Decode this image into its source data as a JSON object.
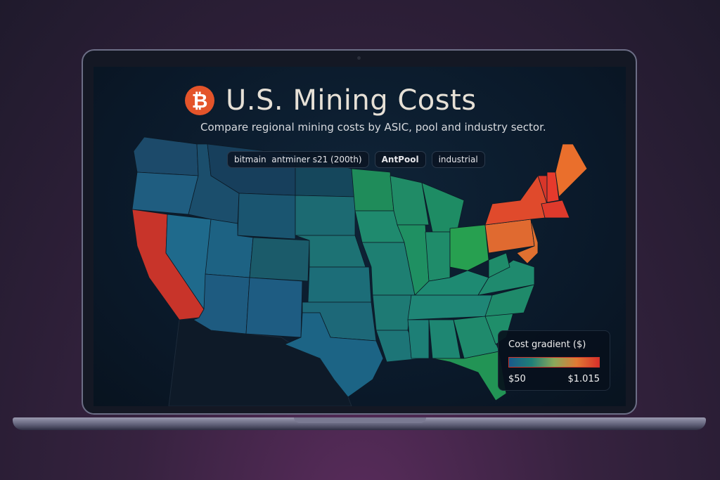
{
  "header": {
    "logo_icon": "bitcoin-icon",
    "logo_glyph": "₿",
    "title": "U.S. Mining Costs",
    "subtitle": "Compare regional mining costs by ASIC, pool and industry sector."
  },
  "filters": [
    {
      "label": "bitmain  antminer s21 (200th)"
    },
    {
      "label": "AntPool"
    },
    {
      "label": "industrial"
    }
  ],
  "legend": {
    "title": "Cost gradient ($)",
    "min_label": "$50",
    "max_label": "$1.015",
    "colors": [
      "#1a5a8a",
      "#1f7f78",
      "#8aa85a",
      "#e07a34",
      "#d8302a"
    ]
  },
  "map": {
    "states": {
      "WA": "#1c4a6a",
      "OR": "#1f5d80",
      "CA": "#c8342a",
      "NV": "#1f6a8c",
      "ID": "#1b4e6c",
      "MT": "#173f5c",
      "WY": "#1a5570",
      "UT": "#1d6283",
      "CO": "#1b5b6a",
      "AZ": "#1e5b80",
      "NM": "#1e5c82",
      "ND": "#15475c",
      "SD": "#1c6a72",
      "NE": "#1d7274",
      "KS": "#1c6d78",
      "OK": "#1d6878",
      "TX": "#1c6485",
      "MN": "#1f8c5a",
      "IA": "#1f8a6e",
      "MO": "#1e7f72",
      "AR": "#1e7a74",
      "LA": "#1d7577",
      "WI": "#208b66",
      "IL": "#1f9062",
      "MI": "#1e8c64",
      "IN": "#1f8c6a",
      "OH": "#27a050",
      "KY": "#1e8a72",
      "TN": "#1f8676",
      "MS": "#1d7f76",
      "AL": "#1e8672",
      "GA": "#1f8a6c",
      "FL": "#229455",
      "SC": "#1f8e6a",
      "NC": "#1f8a6a",
      "VA": "#1f8a6e",
      "WV": "#1f8c6a",
      "PA": "#e06a30",
      "NY": "#e04a2c",
      "NJ": "#e07030",
      "VT": "#d8362a",
      "NH": "#e63a2c",
      "ME": "#ea6f2c",
      "MA": "#de3a2c"
    },
    "outside_color": "#0e1a28"
  }
}
